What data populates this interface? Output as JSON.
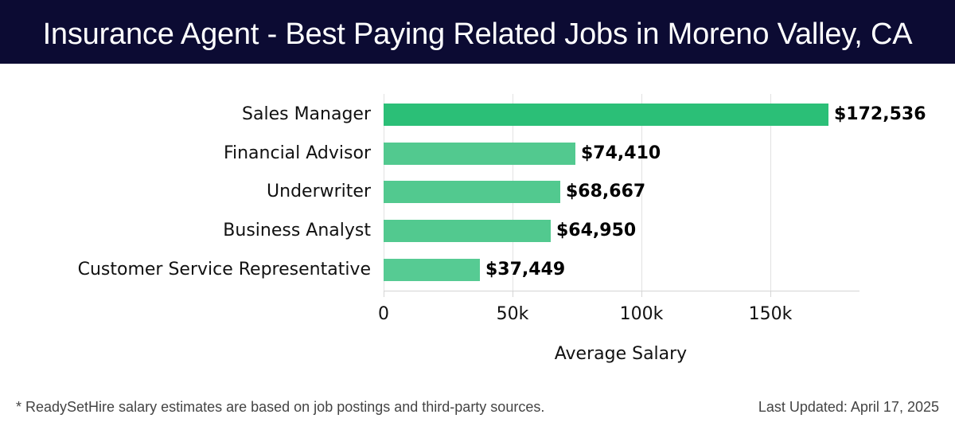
{
  "header": {
    "title": "Insurance Agent - Best Paying Related Jobs in Moreno Valley, CA",
    "background": "#0c0b33"
  },
  "chart_data": {
    "type": "bar",
    "orientation": "horizontal",
    "title": "Insurance Agent - Best Paying Related Jobs in Moreno Valley, CA",
    "xlabel": "Average Salary",
    "ylabel": "",
    "categories": [
      "Sales Manager",
      "Financial Advisor",
      "Underwriter",
      "Business Analyst",
      "Customer Service Representative"
    ],
    "values": [
      172536,
      74410,
      68667,
      64950,
      37449
    ],
    "value_labels": [
      "$172,536",
      "$74,410",
      "$68,667",
      "$64,950",
      "$37,449"
    ],
    "xticks": [
      0,
      50000,
      100000,
      150000
    ],
    "xtick_labels": [
      "0",
      "50k",
      "100k",
      "150k"
    ],
    "xlim": [
      0,
      184000
    ],
    "grid": "vertical",
    "legend": null,
    "colors": [
      "#2bbf77",
      "#52c98f",
      "#52c98f",
      "#52c98f",
      "#56cb93"
    ]
  },
  "footer": {
    "note": "* ReadySetHire salary estimates are based on job postings and third-party sources.",
    "last_updated": "Last Updated: April 17, 2025"
  }
}
